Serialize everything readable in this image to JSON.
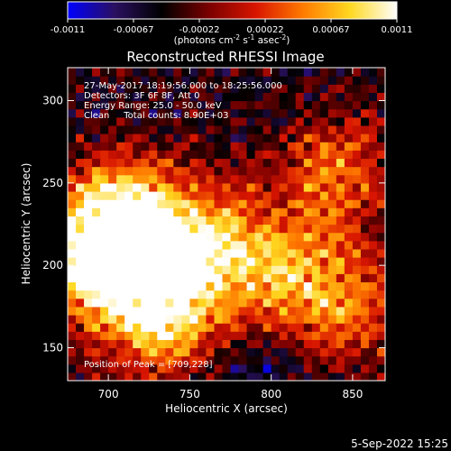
{
  "chart_data": {
    "type": "heatmap",
    "title": "Reconstructed RHESSI Image",
    "xlabel": "Heliocentric X (arcsec)",
    "ylabel": "Heliocentric Y (arcsec)",
    "xlim": [
      675,
      870
    ],
    "ylim": [
      130,
      320
    ],
    "xticks": [
      "700",
      "750",
      "800",
      "850"
    ],
    "yticks": [
      "150",
      "200",
      "250",
      "300"
    ],
    "colorbar": {
      "label_main": "(photons cm",
      "label_sup1": "-2",
      "label_mid": " s",
      "label_sup2": "-1",
      "label_mid2": " asec",
      "label_sup3": "-2",
      "label_end": ")",
      "range": [
        -0.0011,
        0.0011
      ],
      "ticks": [
        "-0.0011",
        "-0.00067",
        "-0.00022",
        "0.00022",
        "0.00067",
        "0.0011"
      ],
      "colors": [
        "#0000ff",
        "#2a1060",
        "#000000",
        "#7a0000",
        "#d81500",
        "#ff7a00",
        "#ffd820",
        "#ffffff"
      ]
    },
    "sources": [
      {
        "x": 709,
        "y": 228,
        "peak": 0.0011
      },
      {
        "x": 735,
        "y": 170,
        "peak": 0.00095
      },
      {
        "x": 690,
        "y": 200,
        "peak": 0.00085
      },
      {
        "x": 760,
        "y": 215,
        "peak": 0.0007
      },
      {
        "x": 805,
        "y": 190,
        "peak": 0.0006
      },
      {
        "x": 840,
        "y": 255,
        "peak": 0.00045
      },
      {
        "x": 850,
        "y": 175,
        "peak": 0.0004
      }
    ],
    "annotations": {
      "line1": "27-May-2017 18:19:56.000 to 18:25:56.000",
      "line2": "Detectors: 3F 6F 8F, Att 0",
      "line3": "Energy Range: 25.0 - 50.0 keV",
      "line4": "Clean     Total counts: 8.90E+03",
      "peak": "Position of Peak = [709,228]"
    },
    "grid": false
  },
  "footer": {
    "timestamp": "5-Sep-2022 15:25"
  }
}
